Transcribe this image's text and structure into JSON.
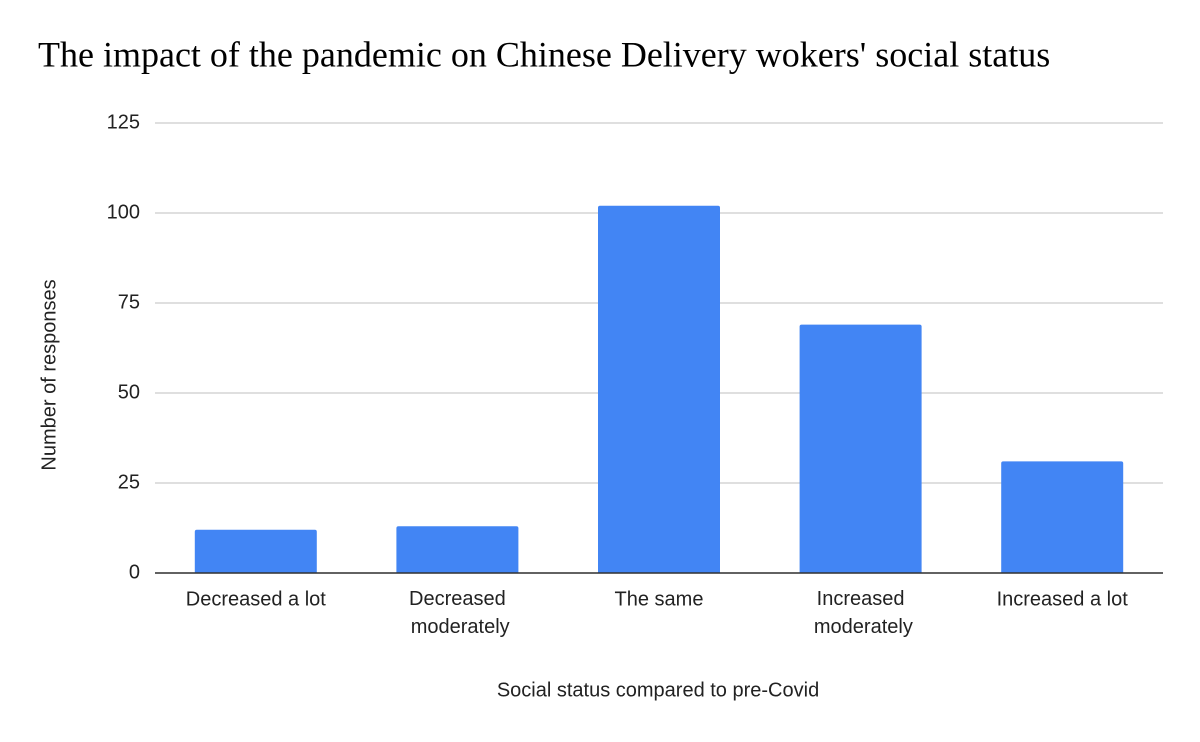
{
  "chart_data": {
    "type": "bar",
    "title": "The impact of the pandemic on Chinese Delivery wokers' social status",
    "x_label": "Social status compared to pre-Covid",
    "y_label": "Number of responses",
    "categories": [
      "Decreased a lot",
      "Decreased moderately",
      "The same",
      "Increased moderately",
      "Increased a lot"
    ],
    "values": [
      12,
      13,
      102,
      69,
      31
    ],
    "color": "#4285f4",
    "ylim": [
      0,
      125
    ],
    "yticks": [
      0,
      25,
      50,
      75,
      100,
      125
    ],
    "grid": true
  }
}
